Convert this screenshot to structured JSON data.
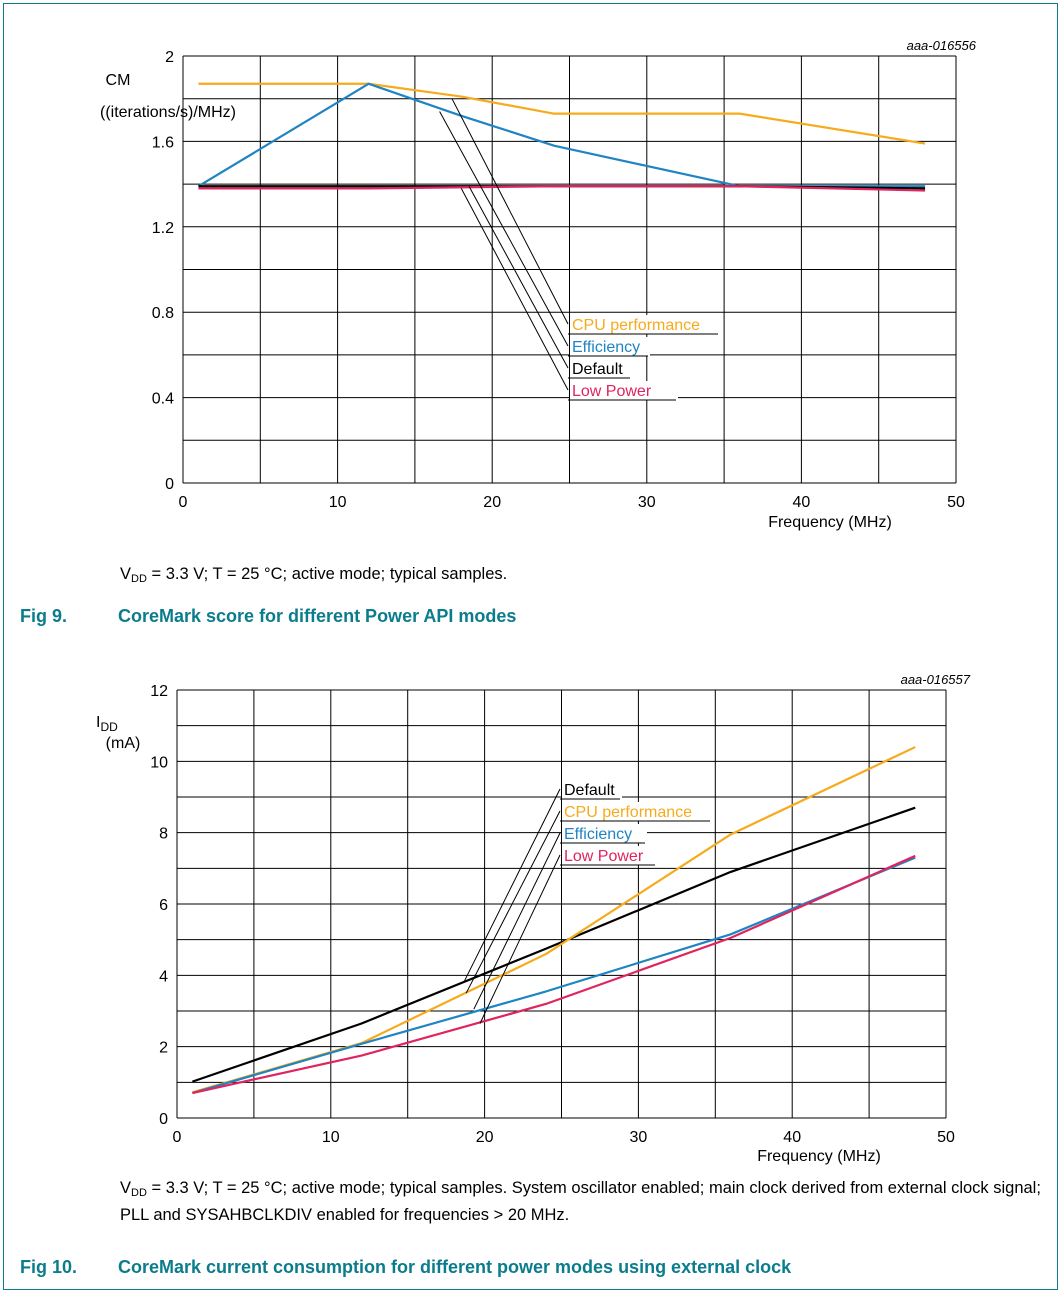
{
  "figures": [
    {
      "caption_number": "Fig 9.",
      "caption_title": "CoreMark score for different Power API modes",
      "conditions": {
        "vdd_symbol": "V",
        "vdd_sub": "DD",
        "text": " = 3.3 V; T = 25 °C; active mode; typical samples."
      }
    },
    {
      "caption_number": "Fig 10.",
      "caption_title": "CoreMark current consumption for different power modes using external clock",
      "conditions": {
        "vdd_symbol": "V",
        "vdd_sub": "DD",
        "text": " = 3.3 V; T = 25 °C; active mode; typical samples. System oscillator enabled; main clock derived from external clock signal; PLL and SYSAHBCLKDIV enabled for frequencies > 20 MHz."
      }
    }
  ],
  "colors": {
    "frame": "#0b7c8c",
    "caption": "#0b7c8c",
    "cpu_performance": "#f5ab1c",
    "efficiency": "#1f84c3",
    "default": "#000000",
    "low_power": "#e0245e",
    "grid": "#000000"
  },
  "chart_data": [
    {
      "type": "line",
      "id_label": "aaa-016556",
      "ylabel_line1": "CM",
      "ylabel_line2": "((iterations/s)/MHz)",
      "xlabel": "Frequency (MHz)",
      "xlim": [
        0,
        50
      ],
      "ylim": [
        0,
        2
      ],
      "xticks": [
        0,
        10,
        20,
        30,
        40,
        50
      ],
      "yticks": [
        0,
        0.4,
        0.8,
        1.2,
        1.6,
        2
      ],
      "ytick_labels": [
        "0",
        "0.4",
        "0.8",
        "1.2",
        "1.6",
        "2"
      ],
      "x_gridlines": [
        0,
        5,
        10,
        15,
        20,
        25,
        30,
        35,
        40,
        45,
        50
      ],
      "y_gridlines": [
        0,
        0.2,
        0.4,
        0.6,
        0.8,
        1.0,
        1.2,
        1.4,
        1.6,
        1.8,
        2.0
      ],
      "grid": true,
      "series": [
        {
          "name": "CPU performance",
          "color": "#f5ab1c",
          "x": [
            1,
            12,
            18,
            24,
            36,
            48
          ],
          "y": [
            1.87,
            1.87,
            1.81,
            1.73,
            1.73,
            1.59
          ]
        },
        {
          "name": "Efficiency",
          "color": "#1f84c3",
          "x": [
            1,
            12,
            18,
            24,
            36,
            48
          ],
          "y": [
            1.39,
            1.87,
            1.72,
            1.58,
            1.39,
            1.39
          ]
        },
        {
          "name": "Default",
          "color": "#000000",
          "x": [
            1,
            12,
            24,
            36,
            48
          ],
          "y": [
            1.39,
            1.39,
            1.39,
            1.39,
            1.38
          ]
        },
        {
          "name": "Low Power",
          "color": "#e0245e",
          "x": [
            1,
            12,
            24,
            36,
            48
          ],
          "y": [
            1.38,
            1.38,
            1.39,
            1.39,
            1.37
          ]
        }
      ],
      "legend_entries": [
        {
          "name": "CPU performance",
          "color": "#f5ab1c",
          "anchor_x": 17.4,
          "anchor_y": 1.8
        },
        {
          "name": "Efficiency",
          "color": "#1f84c3",
          "anchor_x": 16.6,
          "anchor_y": 1.74
        },
        {
          "name": "Default",
          "color": "#000000",
          "anchor_x": 18.5,
          "anchor_y": 1.39
        },
        {
          "name": "Low Power",
          "color": "#e0245e",
          "anchor_x": 18.0,
          "anchor_y": 1.38
        }
      ]
    },
    {
      "type": "line",
      "id_label": "aaa-016557",
      "ylabel_line1": "I",
      "ylabel_line1_sub": "DD",
      "ylabel_line2": "(mA)",
      "xlabel": "Frequency (MHz)",
      "xlim": [
        0,
        50
      ],
      "ylim": [
        0,
        12
      ],
      "xticks": [
        0,
        10,
        20,
        30,
        40,
        50
      ],
      "yticks": [
        0,
        2,
        4,
        6,
        8,
        10,
        12
      ],
      "ytick_labels": [
        "0",
        "2",
        "4",
        "6",
        "8",
        "10",
        "12"
      ],
      "x_gridlines": [
        0,
        5,
        10,
        15,
        20,
        25,
        30,
        35,
        40,
        45,
        50
      ],
      "y_gridlines": [
        0,
        1,
        2,
        3,
        4,
        5,
        6,
        7,
        8,
        9,
        10,
        11,
        12
      ],
      "grid": true,
      "series": [
        {
          "name": "Default",
          "color": "#000000",
          "x": [
            1,
            12,
            24,
            36,
            48
          ],
          "y": [
            1.02,
            2.65,
            4.75,
            6.9,
            8.7
          ]
        },
        {
          "name": "CPU performance",
          "color": "#f5ab1c",
          "x": [
            1,
            12,
            24,
            36,
            48
          ],
          "y": [
            0.72,
            2.1,
            4.6,
            7.95,
            10.4
          ]
        },
        {
          "name": "Efficiency",
          "color": "#1f84c3",
          "x": [
            1,
            12,
            24,
            36,
            48
          ],
          "y": [
            0.7,
            2.08,
            3.55,
            5.15,
            7.3
          ]
        },
        {
          "name": "Low Power",
          "color": "#e0245e",
          "x": [
            1,
            12,
            24,
            36,
            48
          ],
          "y": [
            0.7,
            1.75,
            3.2,
            5.05,
            7.35
          ]
        }
      ],
      "legend_entries": [
        {
          "name": "Default",
          "color": "#000000",
          "anchor_x": 18.7,
          "anchor_y": 3.85
        },
        {
          "name": "CPU performance",
          "color": "#f5ab1c",
          "anchor_x": 18.8,
          "anchor_y": 3.5
        },
        {
          "name": "Efficiency",
          "color": "#1f84c3",
          "anchor_x": 19.3,
          "anchor_y": 3.05
        },
        {
          "name": "Low Power",
          "color": "#e0245e",
          "anchor_x": 19.7,
          "anchor_y": 2.65
        }
      ]
    }
  ]
}
